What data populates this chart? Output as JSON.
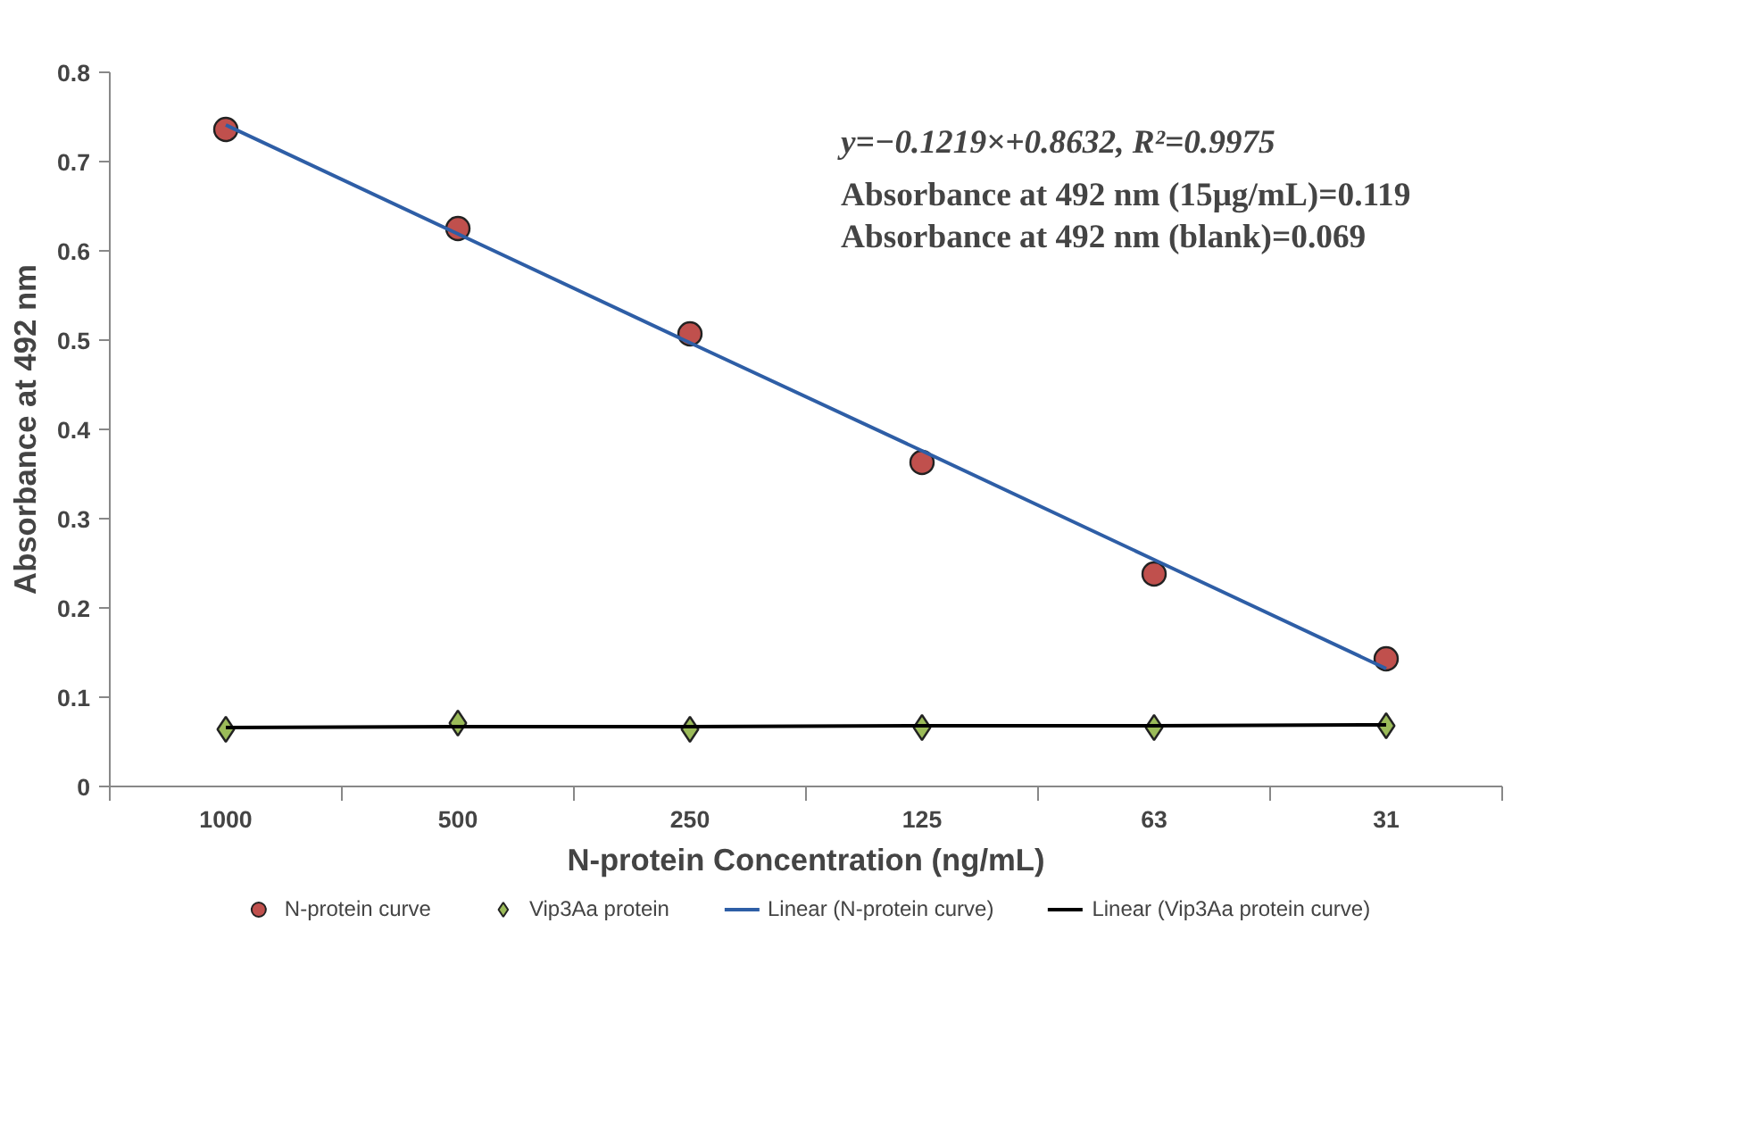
{
  "chart_data": {
    "type": "scatter",
    "xlabel": "N-protein Concentration (ng/mL)",
    "ylabel": "Absorbance at 492 nm",
    "categories": [
      "1000",
      "500",
      "250",
      "125",
      "63",
      "31"
    ],
    "ylim": [
      0,
      0.8
    ],
    "yticks": [
      0,
      0.1,
      0.2,
      0.3,
      0.4,
      0.5,
      0.6,
      0.7,
      0.8
    ],
    "grid": false,
    "legend": "bottom",
    "series": [
      {
        "name": "N-protein curve",
        "marker": "circle",
        "color": "#c0504d",
        "values": [
          0.736,
          0.625,
          0.507,
          0.363,
          0.238,
          0.143
        ]
      },
      {
        "name": "Vip3Aa protein",
        "marker": "diamond",
        "color": "#9bbb59",
        "values": [
          0.064,
          0.071,
          0.064,
          0.066,
          0.066,
          0.068
        ]
      },
      {
        "name": "Linear (N-protein curve)",
        "type": "line",
        "color": "#2e5ea6",
        "values": [
          0.741,
          0.619,
          0.497,
          0.376,
          0.254,
          0.132
        ]
      },
      {
        "name": "Linear (Vip3Aa protein curve)",
        "type": "line",
        "color": "#000000",
        "values": [
          0.066,
          0.067,
          0.067,
          0.068,
          0.068,
          0.069
        ]
      }
    ],
    "annotations": [
      "y=−0.1219×+0.8632, R²=0.9975",
      "Absorbance at 492 nm (15μg/mL)=0.119",
      "Absorbance at 492 nm (blank)=0.069"
    ]
  }
}
